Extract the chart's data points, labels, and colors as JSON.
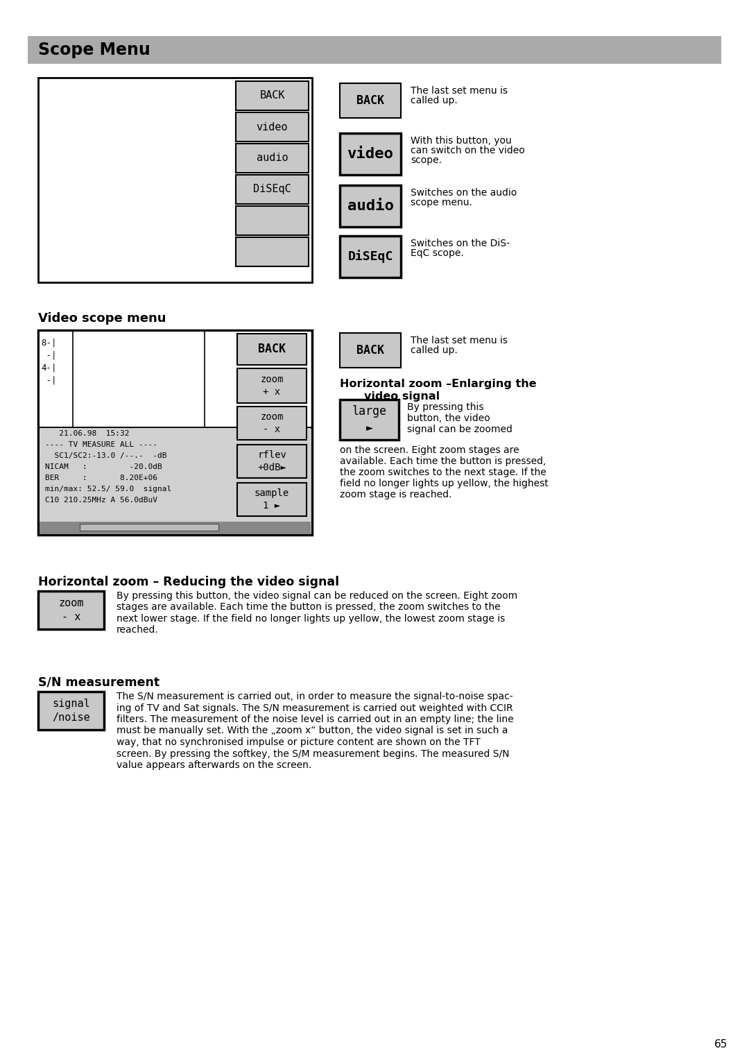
{
  "title": "Scope Menu",
  "title_bg": "#aaaaaa",
  "page_bg": "#ffffff",
  "page_number": "65",
  "section1_menu_buttons": [
    "BACK",
    "video",
    "audio",
    "DiSEqC",
    "",
    ""
  ],
  "section1_right_buttons": [
    "BACK",
    "video",
    "audio",
    "DiSEqC"
  ],
  "section1_descriptions": [
    [
      "The last set menu is",
      "called up."
    ],
    [
      "With this button, you",
      "can switch on the video",
      "scope."
    ],
    [
      "Switches on the audio",
      "scope menu."
    ],
    [
      "Switches on the DiS-",
      "EqC scope."
    ]
  ],
  "section2_title": "Video scope menu",
  "section2_screen_text_lines": [
    "   21.06.98  15:32",
    "---- TV MEASURE ALL ----",
    "  SC1/SC2:-13.0 /--.-  -dB",
    "NICAM   :         -20.0dB",
    "BER     :       8.20E+06",
    "min/max: 52.5/ 59.0  signal",
    "C10 210.25MHz A 56.0dBuV"
  ],
  "section2_right_btn_labels": [
    "zoom\n+ x",
    "zoom\n- x",
    "rflev\n+0dB►",
    "sample\n1 ►"
  ],
  "hz_enlarge_title1": "Horizontal zoom –Enlarging the",
  "hz_enlarge_title2": "video signal",
  "hz_enlarge_btn": "large\n►",
  "hz_enlarge_text_beside": [
    "By pressing this",
    "button, the video",
    "signal can be zoomed"
  ],
  "hz_enlarge_text_below": [
    "on the screen. Eight zoom stages are",
    "available. Each time the button is pressed,",
    "the zoom switches to the next stage. If the",
    "field no longer lights up yellow, the highest",
    "zoom stage is reached."
  ],
  "hz_reduce_title": "Horizontal zoom – Reducing the video signal",
  "hz_reduce_btn": "zoom\n- x",
  "hz_reduce_text": [
    "By pressing this button, the video signal can be reduced on the screen. Eight zoom",
    "stages are available. Each time the button is pressed, the zoom switches to the",
    "next lower stage. If the field no longer lights up yellow, the lowest zoom stage is",
    "reached."
  ],
  "sn_title": "S/N measurement",
  "sn_btn": "signal\n/noise",
  "sn_text": [
    "The S/N measurement is carried out, in order to measure the signal-to-noise spac-",
    "ing of TV and Sat signals. The S/N measurement is carried out weighted with CCIR",
    "filters. The measurement of the noise level is carried out in an empty line; the line",
    "must be manually set. With the „zoom x“ button, the video signal is set in such a",
    "way, that no synchronised impulse or picture content are shown on the TFT",
    "screen. By pressing the softkey, the S/M measurement begins. The measured S/N",
    "value appears afterwards on the screen."
  ],
  "btn_bg": "#c8c8c8",
  "btn_border": "#000000",
  "text_color": "#000000",
  "mono_font": "monospace",
  "sans_font": "sans-serif"
}
